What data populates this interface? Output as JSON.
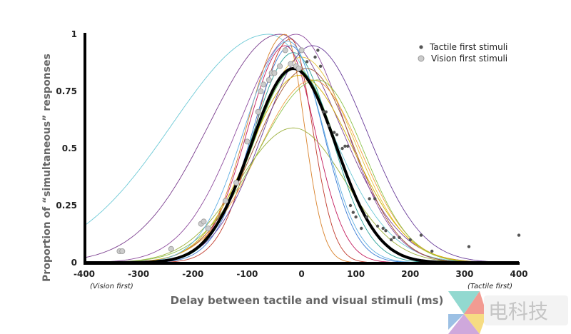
{
  "chart_data": {
    "type": "line",
    "title": "",
    "xlabel": "Delay between tactile and visual stimuli (ms)",
    "ylabel": "Proportion of “simultaneous” responses",
    "xlim": [
      -400,
      400
    ],
    "ylim": [
      0,
      1
    ],
    "xticks": [
      "-400",
      "-300",
      "-200",
      "-100",
      "0",
      "100",
      "200",
      "300",
      "400"
    ],
    "xtick_values": [
      -400,
      -300,
      -200,
      -100,
      0,
      100,
      200,
      300,
      400
    ],
    "yticks": [
      "0",
      "0.25",
      "0.5",
      "0.75",
      "1"
    ],
    "ytick_values": [
      0,
      0.25,
      0.5,
      0.75,
      1
    ],
    "x_note_left": "(Vision first)",
    "x_note_right": "(Tactile first)",
    "legend": {
      "position": "top-right",
      "entries": [
        "Tactile first stimuli",
        "Vision first stimuli"
      ]
    },
    "mean_curve": {
      "name": "group fit",
      "mu": -15,
      "amp": 0.85,
      "sigma_left": 78,
      "sigma_right": 78,
      "color": "#000000"
    },
    "individual_curves": [
      {
        "mu": -60,
        "amp": 1,
        "sl": 178,
        "sr": 110,
        "color": "#6cc9d6"
      },
      {
        "mu": -40,
        "amp": 1,
        "sl": 130,
        "sr": 110,
        "color": "#7b3f8f"
      },
      {
        "mu": -10,
        "amp": 1,
        "sl": 105,
        "sr": 90,
        "color": "#8e4c9e"
      },
      {
        "mu": -30,
        "amp": 1,
        "sl": 70,
        "sr": 35,
        "color": "#d9822b"
      },
      {
        "mu": -20,
        "amp": 0.98,
        "sl": 65,
        "sr": 40,
        "color": "#c0392b"
      },
      {
        "mu": -15,
        "amp": 0.59,
        "sl": 100,
        "sr": 95,
        "color": "#9bb03a"
      },
      {
        "mu": 0,
        "amp": 0.9,
        "sl": 85,
        "sr": 95,
        "color": "#e6c33a"
      },
      {
        "mu": -20,
        "amp": 0.95,
        "sl": 70,
        "sr": 60,
        "color": "#3a7bd5"
      },
      {
        "mu": -10,
        "amp": 0.85,
        "sl": 80,
        "sr": 75,
        "color": "#4caf50"
      },
      {
        "mu": -15,
        "amp": 0.92,
        "sl": 75,
        "sr": 70,
        "color": "#2aa198"
      },
      {
        "mu": -30,
        "amp": 0.95,
        "sl": 70,
        "sr": 55,
        "color": "#c2185b"
      },
      {
        "mu": 10,
        "amp": 0.85,
        "sl": 95,
        "sr": 85,
        "color": "#a0522d"
      },
      {
        "mu": 20,
        "amp": 0.8,
        "sl": 100,
        "sr": 90,
        "color": "#f0a040"
      },
      {
        "mu": -5,
        "amp": 0.82,
        "sl": 90,
        "sr": 100,
        "color": "#d4b000"
      },
      {
        "mu": 20,
        "amp": 0.95,
        "sl": 90,
        "sr": 100,
        "color": "#6a3d9a"
      },
      {
        "mu": 30,
        "amp": 0.8,
        "sl": 110,
        "sr": 85,
        "color": "#8bc34a"
      },
      {
        "mu": -25,
        "amp": 0.97,
        "sl": 80,
        "sr": 65,
        "color": "#5dade2"
      }
    ],
    "series": [
      {
        "name": "Tactile first stimuli",
        "color": "#555555",
        "points": [
          [
            10,
            0.88
          ],
          [
            25,
            0.9
          ],
          [
            30,
            0.93
          ],
          [
            35,
            0.86
          ],
          [
            40,
            0.66
          ],
          [
            45,
            0.66
          ],
          [
            50,
            0.6
          ],
          [
            60,
            0.57
          ],
          [
            65,
            0.56
          ],
          [
            75,
            0.5
          ],
          [
            80,
            0.51
          ],
          [
            85,
            0.51
          ],
          [
            90,
            0.25
          ],
          [
            95,
            0.22
          ],
          [
            100,
            0.2
          ],
          [
            110,
            0.15
          ],
          [
            120,
            0.2
          ],
          [
            125,
            0.28
          ],
          [
            135,
            0.28
          ],
          [
            140,
            0.16
          ],
          [
            150,
            0.15
          ],
          [
            155,
            0.14
          ],
          [
            165,
            0.1
          ],
          [
            170,
            0.11
          ],
          [
            180,
            0.11
          ],
          [
            200,
            0.1
          ],
          [
            220,
            0.12
          ],
          [
            240,
            0.05
          ],
          [
            308,
            0.07
          ],
          [
            400,
            0.12
          ]
        ]
      },
      {
        "name": "Vision first stimuli",
        "color": "#bbbbbb",
        "points": [
          [
            -335,
            0.05
          ],
          [
            -330,
            0.05
          ],
          [
            -240,
            0.06
          ],
          [
            -185,
            0.17
          ],
          [
            -180,
            0.18
          ],
          [
            -172,
            0.15
          ],
          [
            -140,
            0.27
          ],
          [
            -120,
            0.35
          ],
          [
            -100,
            0.53
          ],
          [
            -80,
            0.66
          ],
          [
            -75,
            0.75
          ],
          [
            -70,
            0.78
          ],
          [
            -60,
            0.8
          ],
          [
            -55,
            0.83
          ],
          [
            -50,
            0.83
          ],
          [
            -40,
            0.86
          ],
          [
            -30,
            0.93
          ],
          [
            -20,
            0.87
          ],
          [
            -10,
            0.86
          ],
          [
            -5,
            0.85
          ],
          [
            0,
            0.93
          ]
        ]
      }
    ]
  },
  "watermark": {
    "text": "电科技"
  }
}
